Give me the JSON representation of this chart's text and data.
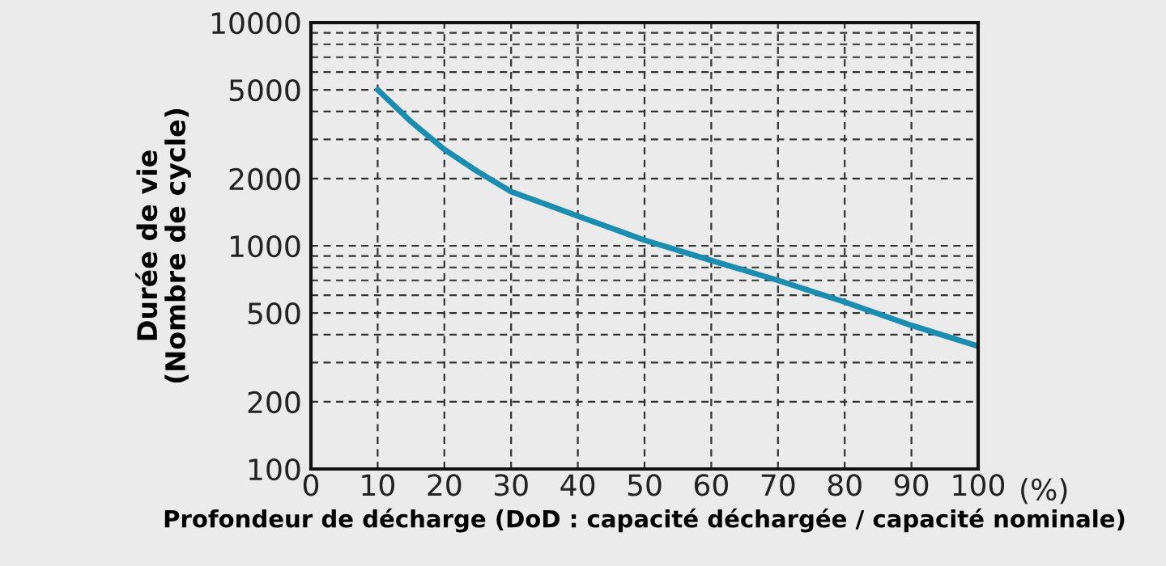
{
  "chart_data": {
    "type": "line",
    "xlabel": "Profondeur de décharge (DoD : capacité déchargée / capacité nominale)",
    "ylabel": "Durée de vie\n(Nombre de cycle)",
    "annotations": [
      "(%)"
    ],
    "series": [
      {
        "color": "#1a8db0",
        "x": [
          10,
          15,
          20,
          25,
          30,
          40,
          50,
          60,
          70,
          80,
          90,
          100
        ],
        "values": [
          5000,
          3600,
          2700,
          2150,
          1750,
          1360,
          1060,
          860,
          700,
          560,
          440,
          355
        ]
      }
    ],
    "log": "y",
    "xlim": [
      0,
      100
    ],
    "xticks": [
      0,
      10,
      20,
      30,
      40,
      50,
      60,
      70,
      80,
      90,
      100
    ],
    "ylim": [
      100,
      10000
    ],
    "yticks": [
      100,
      200,
      {
        "value": 300,
        "label": null
      },
      {
        "value": 400,
        "label": null
      },
      500,
      {
        "value": 600,
        "label": null
      },
      {
        "value": 700,
        "label": null
      },
      {
        "value": 800,
        "label": null
      },
      {
        "value": 900,
        "label": null
      },
      1000,
      2000,
      {
        "value": 3000,
        "label": null
      },
      {
        "value": 4000,
        "label": null
      },
      5000,
      {
        "value": 6000,
        "label": null
      },
      {
        "value": 7000,
        "label": null
      },
      {
        "value": 8000,
        "label": null
      },
      {
        "value": 9000,
        "label": null
      },
      10000
    ],
    "grid": true,
    "line_style": "solid",
    "marker": "none"
  }
}
